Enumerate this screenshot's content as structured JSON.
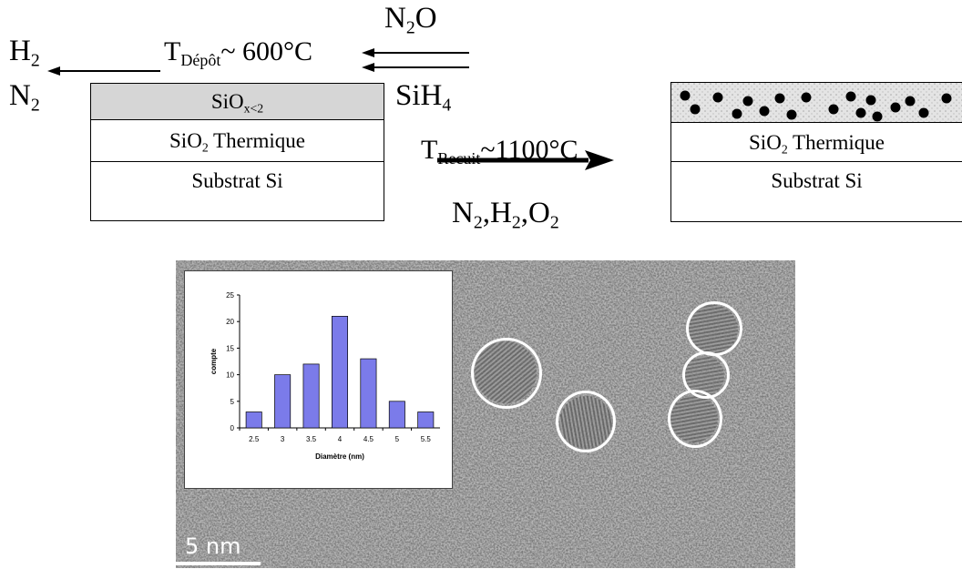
{
  "top_diagram": {
    "left_gas_out_1": {
      "base": "H",
      "sub": "2"
    },
    "left_gas_out_2": {
      "base": "N",
      "sub": "2"
    },
    "deposition_temp": {
      "base": "T",
      "sub": "Dépôt",
      "rest": "~ 600°C"
    },
    "gas_in_1": {
      "base": "N",
      "sub": "2",
      "rest": "O"
    },
    "gas_in_2": {
      "base": "SiH",
      "sub": "4"
    },
    "anneal_temp": {
      "base": "T",
      "sub": "Recuit",
      "rest": "~1100°C"
    },
    "anneal_gases": {
      "a": "N",
      "a_sub": "2",
      "b": ",H",
      "b_sub": "2",
      "c": ",O",
      "c_sub": "2"
    },
    "left_stack": {
      "layer1": {
        "base": "SiO",
        "sub": "x<2"
      },
      "layer2": {
        "base": "SiO",
        "sub": "2",
        "rest": " Thermique"
      },
      "layer3": "Substrat Si"
    },
    "right_stack": {
      "layer2": {
        "base": "SiO",
        "sub": "2",
        "rest": " Thermique"
      },
      "layer3": "Substrat Si"
    },
    "colors": {
      "deposit_layer": "#d6d6d6",
      "ink": "#000000"
    }
  },
  "tem_image": {
    "scale_bar_label": "5 nm",
    "nanocrystal_count": 5
  },
  "chart_data": {
    "type": "bar",
    "categories": [
      "2.5",
      "3",
      "3.5",
      "4",
      "4.5",
      "5",
      "5.5"
    ],
    "values": [
      3,
      10,
      12,
      21,
      13,
      5,
      3
    ],
    "xlabel": "Diamètre  (nm)",
    "ylabel": "compte",
    "ylim": [
      0,
      25
    ],
    "yticks": [
      "0",
      "5",
      "10",
      "15",
      "20",
      "25"
    ],
    "bar_color": "#7b7bea",
    "grid": false,
    "legend": "none"
  }
}
